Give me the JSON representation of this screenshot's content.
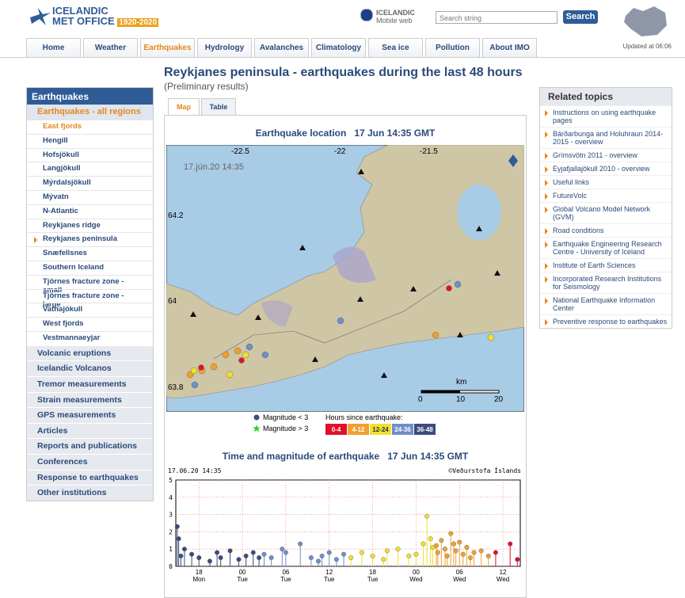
{
  "header": {
    "logo_line1": "ICELANDIC",
    "logo_line2": "MET OFFICE",
    "logo_years": "1920-2020",
    "mobile_line1": "ICELANDIC",
    "mobile_line2": "Mobile web",
    "search_placeholder": "Search string",
    "search_button": "Search",
    "updated": "Updated at 06:06"
  },
  "nav": [
    "Home",
    "Weather",
    "Earthquakes",
    "Hydrology",
    "Avalanches",
    "Climatology",
    "Sea ice",
    "Pollution",
    "About IMO"
  ],
  "sidebar": {
    "title": "Earthquakes",
    "active": "Earthquakes - all regions",
    "regions": [
      "East fjords",
      "Hengill",
      "Hofsjökull",
      "Langjökull",
      "Mýrdalsjökull",
      "Mývatn",
      "N-Atlantic",
      "Reykjanes ridge",
      "Reykjanes peninsula",
      "Snæfellsnes",
      "Southern Iceland",
      "Tjörnes fracture zone - small",
      "Tjörnes fracture zone - large",
      "Vatnajökull",
      "West fjords",
      "Vestmannaeyjar"
    ],
    "links": [
      "Volcanic eruptions",
      "Icelandic Volcanos",
      "Tremor measurements",
      "Strain measurements",
      "GPS measurements",
      "Articles",
      "Reports and publications",
      "Conferences",
      "Response to earthquakes",
      "Other institutions"
    ]
  },
  "page": {
    "title": "Reykjanes peninsula - earthquakes during the last 48 hours",
    "subtitle": "(Preliminary results)",
    "tabs": [
      "Map",
      "Table"
    ]
  },
  "map": {
    "title": "Earthquake location   17 Jun 14:35 GMT",
    "timestamp": "17.jún.20 14:35",
    "lon_labels": [
      "-22.5",
      "-22",
      "-21.5"
    ],
    "lat_labels": [
      "64.2",
      "64",
      "63.8"
    ],
    "scale_unit": "km",
    "scale_labels": [
      "0",
      "10",
      "20"
    ],
    "legend_small": "Magnitude < 3",
    "legend_large": "Magnitude > 3",
    "legend_hours": "Hours since earthquake:"
  },
  "chart": {
    "type": "scatter",
    "title": "Time and magnitude of earthquake   17 Jun 14:35 GMT",
    "stamp": "17.06.20 14:35",
    "credit": "©Veðurstofa Íslands",
    "xlim": [
      14.8,
      62.4
    ],
    "ylim": [
      0,
      5
    ],
    "yticks": [
      0,
      1,
      2,
      3,
      4,
      5
    ],
    "xticks": [
      {
        "value": 18,
        "label": "18",
        "day": "Mon"
      },
      {
        "value": 24,
        "label": "00",
        "day": "Tue"
      },
      {
        "value": 30,
        "label": "06",
        "day": "Tue"
      },
      {
        "value": 36,
        "label": "12",
        "day": "Tue"
      },
      {
        "value": 42,
        "label": "18",
        "day": "Tue"
      },
      {
        "value": 48,
        "label": "00",
        "day": "Wed"
      },
      {
        "value": 54,
        "label": "06",
        "day": "Wed"
      },
      {
        "value": 60,
        "label": "12",
        "day": "Wed"
      }
    ],
    "series": [
      {
        "name": "0-4",
        "color": "#e0102a",
        "x": [
          59,
          61,
          62
        ],
        "values": [
          0.8,
          1.3,
          0.4
        ]
      },
      {
        "name": "4-12",
        "color": "#f0a030",
        "x": [
          50.8,
          51,
          51.5,
          52,
          52.3,
          52.8,
          53.2,
          53.5,
          54,
          54.5,
          55,
          55.5,
          56,
          57,
          58
        ],
        "values": [
          1.2,
          0.8,
          1.5,
          1.0,
          0.6,
          1.9,
          1.3,
          0.9,
          1.4,
          0.7,
          1.1,
          0.5,
          0.8,
          0.9,
          0.6
        ]
      },
      {
        "name": "12-24",
        "color": "#f0e030",
        "x": [
          39,
          40.5,
          42,
          43.5,
          44,
          45.5,
          47,
          48,
          49,
          49.5,
          50,
          50.3
        ],
        "values": [
          0.5,
          0.8,
          0.6,
          0.4,
          0.9,
          1.0,
          0.6,
          0.7,
          1.3,
          2.9,
          1.6,
          1.1
        ]
      },
      {
        "name": "24-36",
        "color": "#6f8fc9",
        "x": [
          27,
          28,
          29.5,
          30,
          32,
          33.5,
          34.5,
          35,
          36,
          37,
          38
        ],
        "values": [
          0.7,
          0.5,
          1.0,
          0.8,
          1.3,
          0.5,
          0.3,
          0.6,
          0.8,
          0.4,
          0.7
        ]
      },
      {
        "name": "36-48",
        "color": "#3c4c7c",
        "x": [
          15,
          15.2,
          15.5,
          16,
          17,
          18,
          19.5,
          20.5,
          21,
          22.3,
          23.5,
          24.5,
          25.5,
          26.3
        ],
        "values": [
          2.3,
          1.6,
          0.6,
          1.0,
          0.7,
          0.5,
          0.3,
          0.8,
          0.5,
          0.9,
          0.4,
          0.6,
          0.8,
          0.5
        ]
      }
    ]
  },
  "related": {
    "title": "Related topics",
    "links": [
      "Instructions on using earthquake pages",
      "Bárðarbunga and Holuhraun 2014-2015 - overview",
      "Grímsvötn 2011 - overview",
      "Eyjafjallajökull 2010 - overview",
      "Useful links",
      "FutureVolc",
      "Global Volcano Model Network (GVM)",
      "Road conditions",
      "Earthquake Engineering Research Centre - University of Iceland",
      "Institute of Earth Sciences",
      "Incorporated Research Institutions for Seismology",
      "National Earthquake Information Center",
      "Preventive response to earthquakes"
    ]
  }
}
